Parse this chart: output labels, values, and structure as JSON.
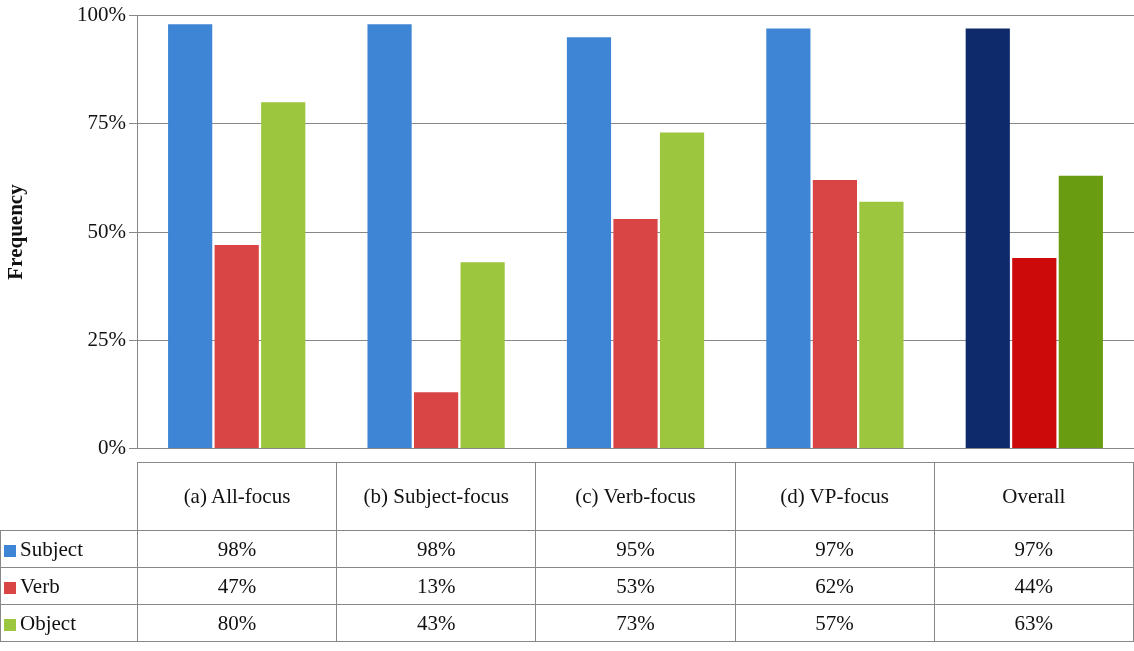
{
  "chart_data": {
    "type": "bar",
    "ylabel": "Frequency",
    "categories": [
      "(a) All-focus",
      "(b) Subject-focus",
      "(c) Verb-focus",
      "(d) VP-focus",
      "Overall"
    ],
    "series": [
      {
        "name": "Subject",
        "color": "#3f85d6",
        "colors": [
          "#3f85d6",
          "#3f85d6",
          "#3f85d6",
          "#3f85d6",
          "#0e2a6b"
        ],
        "values": [
          98,
          98,
          95,
          97,
          97
        ],
        "value_labels": [
          "98%",
          "98%",
          "95%",
          "97%",
          "97%"
        ]
      },
      {
        "name": "Verb",
        "color": "#d94545",
        "colors": [
          "#d94545",
          "#d94545",
          "#d94545",
          "#d94545",
          "#cc0a0a"
        ],
        "values": [
          47,
          13,
          53,
          62,
          44
        ],
        "value_labels": [
          "47%",
          "13%",
          "53%",
          "62%",
          "44%"
        ]
      },
      {
        "name": "Object",
        "color": "#9cc63e",
        "colors": [
          "#9cc63e",
          "#9cc63e",
          "#9cc63e",
          "#9cc63e",
          "#6a9c12"
        ],
        "values": [
          80,
          43,
          73,
          57,
          63
        ],
        "value_labels": [
          "80%",
          "43%",
          "73%",
          "57%",
          "63%"
        ]
      }
    ],
    "ylim": [
      0,
      100
    ],
    "yticks": [
      {
        "value": 0,
        "label": "0%"
      },
      {
        "value": 25,
        "label": "25%"
      },
      {
        "value": 50,
        "label": "50%"
      },
      {
        "value": 75,
        "label": "75%"
      },
      {
        "value": 100,
        "label": "100%"
      }
    ],
    "grid": "y",
    "legend": "bottom"
  }
}
